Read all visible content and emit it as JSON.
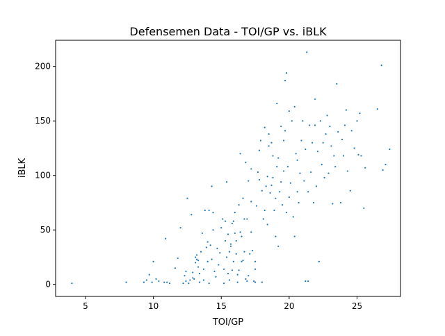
{
  "chart_data": {
    "type": "scatter",
    "title": "Defensemen Data - TOI/GP vs. iBLK",
    "xlabel": "TOI/GP",
    "ylabel": "iBLK",
    "xlim": [
      2.8,
      28.2
    ],
    "ylim": [
      -11,
      224
    ],
    "xticks": [
      5,
      10,
      15,
      20,
      25
    ],
    "yticks": [
      0,
      50,
      100,
      150,
      200
    ],
    "grid": false,
    "marker_color": "#1f77b4",
    "series": [
      {
        "points": [
          [
            4.0,
            1
          ],
          [
            8.0,
            2
          ],
          [
            9.3,
            2
          ],
          [
            9.5,
            4
          ],
          [
            9.7,
            9
          ],
          [
            9.9,
            2
          ],
          [
            10.0,
            21
          ],
          [
            10.2,
            5
          ],
          [
            10.4,
            3
          ],
          [
            10.8,
            2
          ],
          [
            10.9,
            42
          ],
          [
            11.0,
            2
          ],
          [
            11.2,
            1
          ],
          [
            11.6,
            15
          ],
          [
            11.8,
            24
          ],
          [
            12.0,
            52
          ],
          [
            12.2,
            1
          ],
          [
            12.3,
            8
          ],
          [
            12.4,
            3
          ],
          [
            12.4,
            12
          ],
          [
            12.5,
            79
          ],
          [
            12.6,
            1
          ],
          [
            12.7,
            4
          ],
          [
            12.8,
            64
          ],
          [
            12.9,
            11
          ],
          [
            13.0,
            5
          ],
          [
            13.1,
            20
          ],
          [
            13.1,
            25
          ],
          [
            13.2,
            23
          ],
          [
            13.2,
            27
          ],
          [
            13.3,
            16
          ],
          [
            13.3,
            22
          ],
          [
            13.4,
            2
          ],
          [
            13.4,
            10
          ],
          [
            13.5,
            30
          ],
          [
            13.6,
            47
          ],
          [
            13.7,
            4
          ],
          [
            13.7,
            14
          ],
          [
            13.8,
            68
          ],
          [
            13.9,
            34
          ],
          [
            14.0,
            21
          ],
          [
            14.0,
            39
          ],
          [
            14.1,
            68
          ],
          [
            14.2,
            36
          ],
          [
            14.3,
            23
          ],
          [
            14.3,
            90
          ],
          [
            14.4,
            50
          ],
          [
            14.4,
            66
          ],
          [
            14.5,
            12
          ],
          [
            14.6,
            7
          ],
          [
            14.7,
            33
          ],
          [
            14.8,
            18
          ],
          [
            14.9,
            29
          ],
          [
            15.0,
            52
          ],
          [
            15.1,
            60
          ],
          [
            15.2,
            1
          ],
          [
            15.2,
            14
          ],
          [
            15.3,
            40
          ],
          [
            15.3,
            58
          ],
          [
            15.4,
            25
          ],
          [
            15.4,
            94
          ],
          [
            15.5,
            10
          ],
          [
            15.5,
            46
          ],
          [
            15.6,
            4
          ],
          [
            15.6,
            30
          ],
          [
            15.7,
            35
          ],
          [
            15.8,
            13
          ],
          [
            15.8,
            56
          ],
          [
            15.9,
            21
          ],
          [
            15.9,
            58
          ],
          [
            16.0,
            47
          ],
          [
            16.0,
            66
          ],
          [
            16.1,
            28
          ],
          [
            16.1,
            40
          ],
          [
            16.2,
            2
          ],
          [
            16.2,
            9
          ],
          [
            16.3,
            13
          ],
          [
            16.3,
            73
          ],
          [
            16.4,
            48
          ],
          [
            16.4,
            120
          ],
          [
            16.5,
            21
          ],
          [
            16.5,
            44
          ],
          [
            16.6,
            22
          ],
          [
            16.6,
            79
          ],
          [
            16.7,
            30
          ],
          [
            16.7,
            60
          ],
          [
            16.8,
            5
          ],
          [
            16.8,
            112
          ],
          [
            16.9,
            60
          ],
          [
            17.0,
            8
          ],
          [
            17.0,
            95
          ],
          [
            17.1,
            28
          ],
          [
            17.2,
            48
          ],
          [
            17.2,
            76
          ],
          [
            17.3,
            31
          ],
          [
            17.4,
            3
          ],
          [
            17.5,
            2
          ],
          [
            17.5,
            14
          ],
          [
            17.5,
            21
          ],
          [
            17.6,
            72
          ],
          [
            17.7,
            103
          ],
          [
            17.8,
            96
          ],
          [
            17.8,
            123
          ],
          [
            17.9,
            132
          ],
          [
            18.0,
            2
          ],
          [
            18.0,
            86
          ],
          [
            18.1,
            60
          ],
          [
            18.2,
            68
          ],
          [
            18.2,
            144
          ],
          [
            18.3,
            90
          ],
          [
            18.4,
            55
          ],
          [
            18.4,
            99
          ],
          [
            18.5,
            138
          ],
          [
            18.6,
            84
          ],
          [
            18.7,
            91
          ],
          [
            18.7,
            130
          ],
          [
            18.8,
            98
          ],
          [
            18.9,
            68
          ],
          [
            19.0,
            44
          ],
          [
            19.0,
            79
          ],
          [
            19.1,
            108
          ],
          [
            19.1,
            166
          ],
          [
            19.2,
            35
          ],
          [
            19.2,
            116
          ],
          [
            19.3,
            85
          ],
          [
            19.4,
            94
          ],
          [
            19.4,
            145
          ],
          [
            19.5,
            73
          ],
          [
            19.6,
            104
          ],
          [
            19.6,
            132
          ],
          [
            19.7,
            141
          ],
          [
            19.8,
            194
          ],
          [
            19.8,
            66
          ],
          [
            19.9,
            108
          ],
          [
            20.0,
            80
          ],
          [
            20.0,
            159
          ],
          [
            20.1,
            93
          ],
          [
            20.2,
            150
          ],
          [
            20.3,
            62
          ],
          [
            20.4,
            44
          ],
          [
            20.5,
            120
          ],
          [
            20.6,
            85
          ],
          [
            20.7,
            75
          ],
          [
            20.8,
            102
          ],
          [
            20.9,
            132
          ],
          [
            21.0,
            150
          ],
          [
            21.1,
            95
          ],
          [
            21.2,
            124
          ],
          [
            21.3,
            213
          ],
          [
            21.4,
            85
          ],
          [
            21.4,
            3
          ],
          [
            21.5,
            146
          ],
          [
            21.6,
            103
          ],
          [
            21.7,
            130
          ],
          [
            21.8,
            75
          ],
          [
            21.9,
            170
          ],
          [
            22.0,
            90
          ],
          [
            22.1,
            122
          ],
          [
            22.2,
            21
          ],
          [
            22.3,
            150
          ],
          [
            22.4,
            110
          ],
          [
            22.5,
            130
          ],
          [
            22.6,
            98
          ],
          [
            22.8,
            155
          ],
          [
            22.9,
            102
          ],
          [
            23.0,
            145
          ],
          [
            23.1,
            127
          ],
          [
            23.2,
            74
          ],
          [
            23.3,
            118
          ],
          [
            23.4,
            108
          ],
          [
            23.5,
            184
          ],
          [
            23.6,
            140
          ],
          [
            23.8,
            75
          ],
          [
            23.9,
            133
          ],
          [
            24.0,
            118
          ],
          [
            24.1,
            146
          ],
          [
            24.2,
            160
          ],
          [
            24.3,
            104
          ],
          [
            24.5,
            86
          ],
          [
            24.6,
            141
          ],
          [
            24.8,
            125
          ],
          [
            25.0,
            150
          ],
          [
            25.1,
            119
          ],
          [
            25.2,
            157
          ],
          [
            25.3,
            118
          ],
          [
            25.5,
            70
          ],
          [
            25.6,
            107
          ],
          [
            26.5,
            161
          ],
          [
            26.8,
            201
          ],
          [
            26.9,
            105
          ],
          [
            27.1,
            110
          ],
          [
            27.4,
            124
          ],
          [
            20.4,
            163
          ],
          [
            21.9,
            146
          ],
          [
            22.7,
            138
          ],
          [
            19.7,
            187
          ],
          [
            18.5,
            127
          ],
          [
            17.2,
            106
          ],
          [
            15.7,
            37
          ],
          [
            14.1,
            1
          ],
          [
            12.9,
            6
          ],
          [
            16.9,
            3
          ],
          [
            18.8,
            118
          ],
          [
            20.6,
            114
          ],
          [
            21.2,
            3
          ]
        ]
      }
    ]
  }
}
